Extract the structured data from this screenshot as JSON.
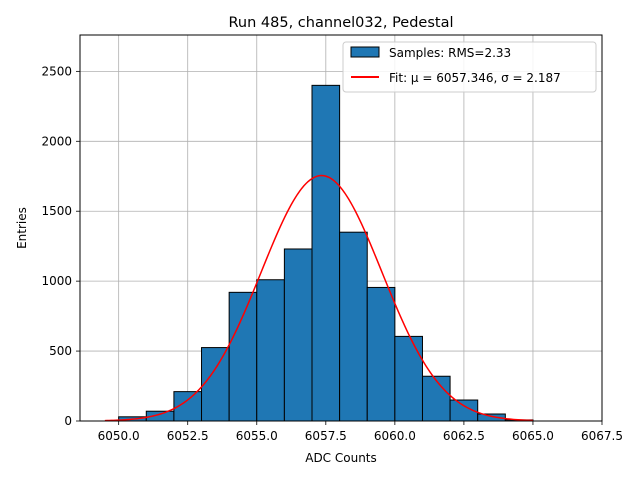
{
  "chart_data": {
    "type": "bar",
    "title": "Run 485, channel032, Pedestal",
    "xlabel": "ADC Counts",
    "ylabel": "Entries",
    "xlim": [
      6048.6,
      6067.5
    ],
    "ylim": [
      0,
      2760
    ],
    "xticks": [
      6050.0,
      6052.5,
      6055.0,
      6057.5,
      6060.0,
      6062.5,
      6065.0,
      6067.5
    ],
    "xtick_labels": [
      "6050.0",
      "6052.5",
      "6055.0",
      "6057.5",
      "6060.0",
      "6062.5",
      "6065.0",
      "6067.5"
    ],
    "yticks": [
      0,
      500,
      1000,
      1500,
      2000,
      2500
    ],
    "ytick_labels": [
      "0",
      "500",
      "1000",
      "1500",
      "2000",
      "2500"
    ],
    "grid": true,
    "legend_position": "top-right",
    "bins": [
      {
        "x0": 6050,
        "x1": 6051,
        "value": 30
      },
      {
        "x0": 6051,
        "x1": 6052,
        "value": 70
      },
      {
        "x0": 6052,
        "x1": 6053,
        "value": 210
      },
      {
        "x0": 6053,
        "x1": 6054,
        "value": 525
      },
      {
        "x0": 6054,
        "x1": 6055,
        "value": 920
      },
      {
        "x0": 6055,
        "x1": 6056,
        "value": 1010
      },
      {
        "x0": 6056,
        "x1": 6057,
        "value": 1230
      },
      {
        "x0": 6057,
        "x1": 6058,
        "value": 2400
      },
      {
        "x0": 6058,
        "x1": 6059,
        "value": 1350
      },
      {
        "x0": 6059,
        "x1": 6060,
        "value": 955
      },
      {
        "x0": 6060,
        "x1": 6061,
        "value": 605
      },
      {
        "x0": 6061,
        "x1": 6062,
        "value": 320
      },
      {
        "x0": 6062,
        "x1": 6063,
        "value": 150
      },
      {
        "x0": 6063,
        "x1": 6064,
        "value": 50
      },
      {
        "x0": 6064,
        "x1": 6065,
        "value": 8
      }
    ],
    "series": [
      {
        "name": "Samples: RMS=2.33",
        "kind": "histogram",
        "color": "#1f77b4",
        "edge_color": "#000000"
      },
      {
        "name": "Fit: μ = 6057.346, σ = 2.187",
        "kind": "gaussian",
        "color": "#ff0000",
        "mu": 6057.346,
        "sigma": 2.187,
        "amplitude": 1755,
        "x_range": [
          6049.5,
          6065.0
        ]
      }
    ]
  }
}
